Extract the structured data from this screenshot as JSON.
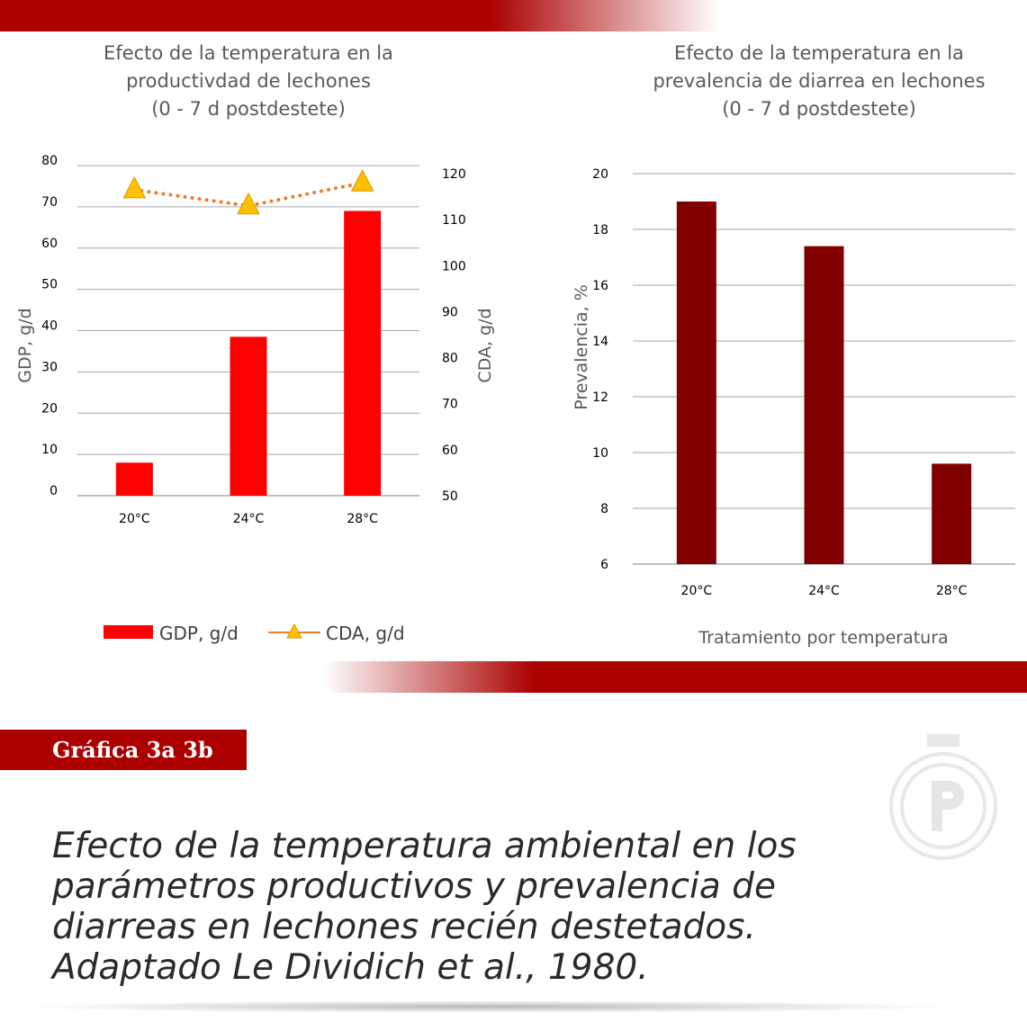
{
  "badge": "Gráfica 3a 3b",
  "caption": {
    "lines": [
      "Efecto de la temperatura ambiental en los",
      "parámetros productivos y prevalencia de",
      "diarreas en lechones recién destetados.",
      "Adaptado Le Dividich et al., 1980."
    ]
  },
  "colors": {
    "brand_red": "#aa0000",
    "gdp_bar": "#ff0000",
    "cda_line": "#ed7d31",
    "cda_marker": "#ffc000",
    "prevalence_bar": "#800000"
  },
  "chart_data": [
    {
      "type": "bar",
      "title_lines": [
        "Efecto de la temperatura en la",
        "productivdad de lechones",
        "(0 - 7 d postdestete)"
      ],
      "categories": [
        "20°C",
        "24°C",
        "28°C"
      ],
      "ylabel": "GDP, g/d",
      "y2label": "CDA, g/d",
      "ylim": [
        0,
        80
      ],
      "y_ticks": [
        "0",
        "10",
        "20",
        "30",
        "40",
        "50",
        "60",
        "70",
        "80"
      ],
      "y2lim": [
        50,
        120
      ],
      "y2_ticks": [
        "50",
        "60",
        "70",
        "80",
        "90",
        "100",
        "110",
        "120"
      ],
      "grid": true,
      "legend_position": "bottom",
      "series": [
        {
          "name": "GDP, g/d",
          "type": "bar",
          "axis": "left",
          "values": [
            8,
            38.5,
            69
          ]
        },
        {
          "name": "CDA, g/d",
          "type": "line",
          "axis": "right",
          "marker": "triangle",
          "line_style": "dotted",
          "values": [
            116.5,
            113,
            118
          ]
        }
      ]
    },
    {
      "type": "bar",
      "title_lines": [
        "Efecto de la temperatura en la",
        "prevalencia de diarrea en lechones",
        "(0 - 7 d postdestete)"
      ],
      "categories": [
        "20°C",
        "24°C",
        "28°C"
      ],
      "xlabel": "Tratamiento por temperatura",
      "ylabel": "Prevalencia, %",
      "ylim": [
        6,
        20
      ],
      "y_ticks": [
        "6",
        "8",
        "10",
        "12",
        "14",
        "16",
        "18",
        "20"
      ],
      "grid": true,
      "series": [
        {
          "name": "Prevalencia, %",
          "values": [
            19,
            17.4,
            9.6
          ]
        }
      ]
    }
  ]
}
